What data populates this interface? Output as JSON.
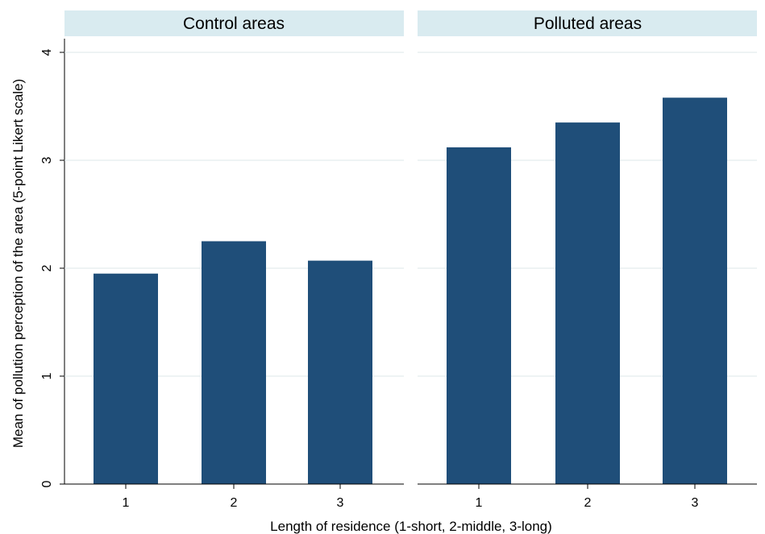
{
  "chart_data": {
    "type": "bar",
    "ylabel": "Mean of pollution perception of the area (5-point Likert scale)",
    "xlabel": "Length of residence (1-short, 2-middle, 3-long)",
    "ylim": [
      0,
      4
    ],
    "yticks": [
      "0",
      "1",
      "2",
      "3",
      "4"
    ],
    "grid": true,
    "bar_color": "#1f4e79",
    "panel_header_color": "#d9ebf0",
    "panels": [
      {
        "title": "Control areas",
        "categories": [
          "1",
          "2",
          "3"
        ],
        "values": [
          1.95,
          2.25,
          2.07
        ]
      },
      {
        "title": "Polluted areas",
        "categories": [
          "1",
          "2",
          "3"
        ],
        "values": [
          3.12,
          3.35,
          3.58
        ]
      }
    ]
  }
}
